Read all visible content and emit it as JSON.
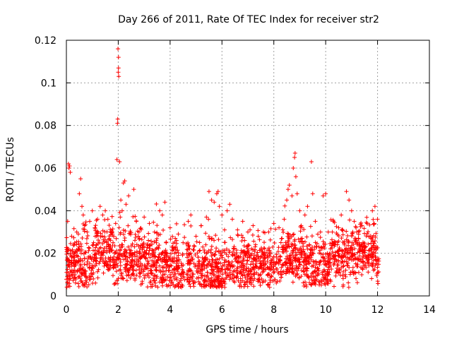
{
  "chart_data": {
    "type": "scatter",
    "title": "Day 266 of 2011, Rate Of TEC Index for receiver str2",
    "xlabel": "GPS time / hours",
    "ylabel": "ROTI / TECUs",
    "xlim": [
      0,
      14
    ],
    "ylim": [
      0,
      0.12
    ],
    "xticks": [
      "0",
      "2",
      "4",
      "6",
      "8",
      "10",
      "12",
      "14"
    ],
    "yticks": [
      "0",
      "0.02",
      "0.04",
      "0.06",
      "0.08",
      "0.1",
      "0.12"
    ],
    "grid": true,
    "marker": "+",
    "color": "#ff0000",
    "series": [
      {
        "points": [
          [
            0.05,
            0.035
          ],
          [
            0.08,
            0.062
          ],
          [
            0.1,
            0.06
          ],
          [
            0.12,
            0.061
          ],
          [
            0.15,
            0.058
          ],
          [
            0.2,
            0.028
          ],
          [
            0.3,
            0.024
          ],
          [
            0.4,
            0.03
          ],
          [
            0.45,
            0.022
          ],
          [
            0.5,
            0.048
          ],
          [
            0.55,
            0.055
          ],
          [
            0.6,
            0.042
          ],
          [
            0.65,
            0.038
          ],
          [
            0.7,
            0.033
          ],
          [
            0.8,
            0.03
          ],
          [
            0.9,
            0.035
          ],
          [
            1.0,
            0.04
          ],
          [
            1.1,
            0.032
          ],
          [
            1.2,
            0.036
          ],
          [
            1.3,
            0.042
          ],
          [
            1.4,
            0.038
          ],
          [
            1.5,
            0.04
          ],
          [
            1.6,
            0.036
          ],
          [
            1.7,
            0.03
          ],
          [
            1.8,
            0.025
          ],
          [
            1.9,
            0.034
          ],
          [
            1.95,
            0.064
          ],
          [
            1.97,
            0.081
          ],
          [
            1.98,
            0.083
          ],
          [
            2.0,
            0.105
          ],
          [
            2.01,
            0.107
          ],
          [
            2.02,
            0.103
          ],
          [
            1.99,
            0.116
          ],
          [
            2.01,
            0.112
          ],
          [
            2.05,
            0.063
          ],
          [
            2.1,
            0.045
          ],
          [
            2.15,
            0.04
          ],
          [
            2.2,
            0.053
          ],
          [
            2.25,
            0.054
          ],
          [
            2.3,
            0.043
          ],
          [
            2.4,
            0.047
          ],
          [
            2.6,
            0.05
          ],
          [
            2.7,
            0.035
          ],
          [
            2.8,
            0.03
          ],
          [
            3.0,
            0.037
          ],
          [
            3.2,
            0.034
          ],
          [
            3.4,
            0.03
          ],
          [
            3.6,
            0.04
          ],
          [
            3.7,
            0.038
          ],
          [
            3.8,
            0.044
          ],
          [
            4.0,
            0.032
          ],
          [
            4.2,
            0.027
          ],
          [
            4.5,
            0.025
          ],
          [
            4.7,
            0.035
          ],
          [
            4.8,
            0.038
          ],
          [
            5.0,
            0.028
          ],
          [
            5.2,
            0.033
          ],
          [
            5.4,
            0.037
          ],
          [
            5.5,
            0.049
          ],
          [
            5.6,
            0.045
          ],
          [
            5.7,
            0.044
          ],
          [
            5.8,
            0.048
          ],
          [
            5.85,
            0.049
          ],
          [
            5.9,
            0.042
          ],
          [
            6.0,
            0.038
          ],
          [
            6.1,
            0.031
          ],
          [
            6.2,
            0.04
          ],
          [
            6.3,
            0.043
          ],
          [
            6.4,
            0.036
          ],
          [
            6.6,
            0.031
          ],
          [
            6.8,
            0.035
          ],
          [
            7.0,
            0.03
          ],
          [
            7.2,
            0.033
          ],
          [
            7.4,
            0.028
          ],
          [
            7.6,
            0.03
          ],
          [
            7.8,
            0.03
          ],
          [
            8.0,
            0.034
          ],
          [
            8.2,
            0.032
          ],
          [
            8.4,
            0.036
          ],
          [
            8.5,
            0.045
          ],
          [
            8.55,
            0.05
          ],
          [
            8.6,
            0.052
          ],
          [
            8.7,
            0.047
          ],
          [
            8.75,
            0.06
          ],
          [
            8.8,
            0.065
          ],
          [
            8.82,
            0.067
          ],
          [
            8.85,
            0.056
          ],
          [
            8.9,
            0.048
          ],
          [
            9.0,
            0.04
          ],
          [
            9.2,
            0.038
          ],
          [
            9.3,
            0.042
          ],
          [
            9.45,
            0.063
          ],
          [
            9.5,
            0.048
          ],
          [
            9.6,
            0.035
          ],
          [
            9.8,
            0.03
          ],
          [
            9.9,
            0.047
          ],
          [
            10.0,
            0.048
          ],
          [
            10.1,
            0.03
          ],
          [
            10.3,
            0.035
          ],
          [
            10.5,
            0.032
          ],
          [
            10.6,
            0.038
          ],
          [
            10.8,
            0.049
          ],
          [
            10.9,
            0.045
          ],
          [
            11.0,
            0.04
          ],
          [
            11.1,
            0.035
          ],
          [
            11.2,
            0.03
          ],
          [
            11.4,
            0.033
          ],
          [
            11.6,
            0.034
          ],
          [
            11.8,
            0.04
          ],
          [
            11.9,
            0.042
          ],
          [
            12.0,
            0.036
          ]
        ]
      }
    ]
  }
}
